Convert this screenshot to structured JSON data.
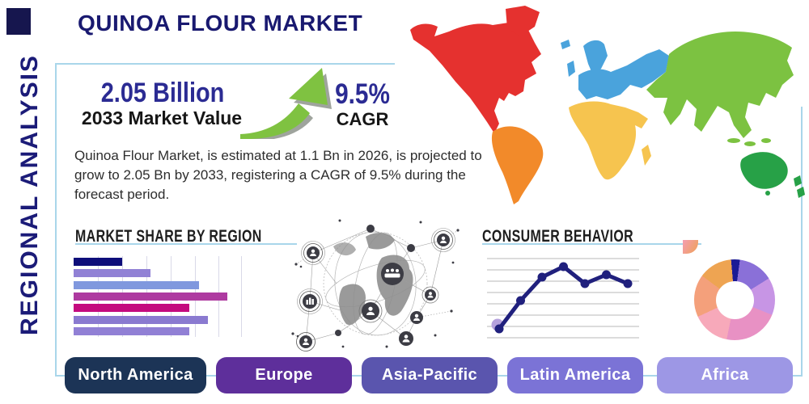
{
  "page": {
    "title": "QUINOA FLOUR MARKET",
    "vertical_label": "REGIONAL ANALYSIS"
  },
  "highlights": {
    "value": "2.05 Billion",
    "value_caption": "2033 Market Value",
    "cagr": "9.5%",
    "cagr_caption": "CAGR",
    "description": "Quinoa Flour Market, is estimated at 1.1 Bn in 2026, is projected to grow to 2.05 Bn by 2033, registering a CAGR of 9.5% during the forecast period."
  },
  "sections": {
    "market_share": "MARKET SHARE BY REGION",
    "consumer": "CONSUMER BEHAVIOR"
  },
  "regions": [
    {
      "label": "North America",
      "color": "#1c3456"
    },
    {
      "label": "Europe",
      "color": "#5e2f9b"
    },
    {
      "label": "Asia-Pacific",
      "color": "#5a55ae"
    },
    {
      "label": "Latin America",
      "color": "#7b73d6"
    },
    {
      "label": "Africa",
      "color": "#9d97e5"
    }
  ],
  "map": {
    "colors": {
      "north_america": "#e5312f",
      "south_america": "#f28a2a",
      "europe": "#4aa3dc",
      "africa": "#f6c44f",
      "asia": "#7cc241",
      "australia": "#27a147"
    }
  },
  "chart_data": [
    {
      "type": "bar",
      "title": "MARKET SHARE BY REGION",
      "orientation": "horizontal",
      "categories": [
        "",
        "",
        "",
        "",
        "",
        "",
        ""
      ],
      "values": [
        29,
        46,
        75,
        92,
        69,
        80,
        69
      ],
      "colors": [
        "#0e0e7a",
        "#9181d5",
        "#8098de",
        "#ae3aa0",
        "#c40a7e",
        "#8a7ad0",
        "#9180d5"
      ],
      "xlim": [
        0,
        100
      ],
      "grid": true,
      "axis_labels_visible": false
    },
    {
      "type": "line",
      "title": "CONSUMER BEHAVIOR",
      "x": [
        1,
        2,
        3,
        4,
        5,
        6,
        7
      ],
      "values": [
        13,
        48,
        77,
        90,
        69,
        80,
        69
      ],
      "ylim": [
        0,
        100
      ],
      "line_color": "#20207d",
      "marker_color": "#20207d",
      "first_marker_halo": "#b5a1dd",
      "grid": true,
      "axis_labels_visible": false
    },
    {
      "type": "pie",
      "donut": true,
      "start_angle_deg": -5,
      "segments": [
        {
          "value": 3.5,
          "color": "#1b1b96"
        },
        {
          "value": 14,
          "color": "#8a70d8"
        },
        {
          "value": 15,
          "color": "#c795e5"
        },
        {
          "value": 22,
          "color": "#e891c4"
        },
        {
          "value": 15,
          "color": "#f7a9ba"
        },
        {
          "value": 17,
          "color": "#f4a07b"
        },
        {
          "value": 13.5,
          "color": "#eea452"
        }
      ]
    }
  ],
  "frame_color": "#a9d6ea",
  "accent_navy": "#2b2b93",
  "arrow_color": "#7fc241"
}
